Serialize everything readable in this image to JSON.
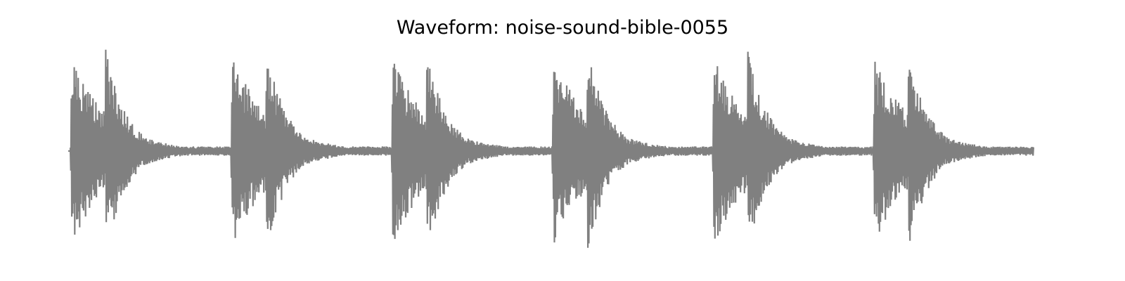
{
  "chart_data": {
    "type": "line",
    "title": "Waveform: noise-sound-bible-0055",
    "xlabel": "",
    "ylabel": "",
    "axes_visible": false,
    "grid": false,
    "legend": "none",
    "ylim": [
      -1.0,
      1.0
    ],
    "xlim": [
      0,
      6
    ],
    "line_color": "#808080",
    "series": [
      {
        "values_description_note": null,
        "envelope_segments": [
          {
            "start": 0.0,
            "end": 1.0,
            "peak_pos": 0.93,
            "peak_neg": -0.95,
            "tail": 0.05
          },
          {
            "start": 1.0,
            "end": 2.0,
            "peak_pos": 0.96,
            "peak_neg": -0.96,
            "tail": 0.05
          },
          {
            "start": 2.0,
            "end": 3.0,
            "peak_pos": 0.92,
            "peak_neg": -0.94,
            "tail": 0.05
          },
          {
            "start": 3.0,
            "end": 4.0,
            "peak_pos": 0.95,
            "peak_neg": -0.95,
            "tail": 0.05
          },
          {
            "start": 4.0,
            "end": 5.0,
            "peak_pos": 0.94,
            "peak_neg": -0.95,
            "tail": 0.05
          },
          {
            "start": 5.0,
            "end": 6.0,
            "peak_pos": 0.92,
            "peak_neg": -0.93,
            "tail": 0.05
          }
        ]
      }
    ]
  }
}
